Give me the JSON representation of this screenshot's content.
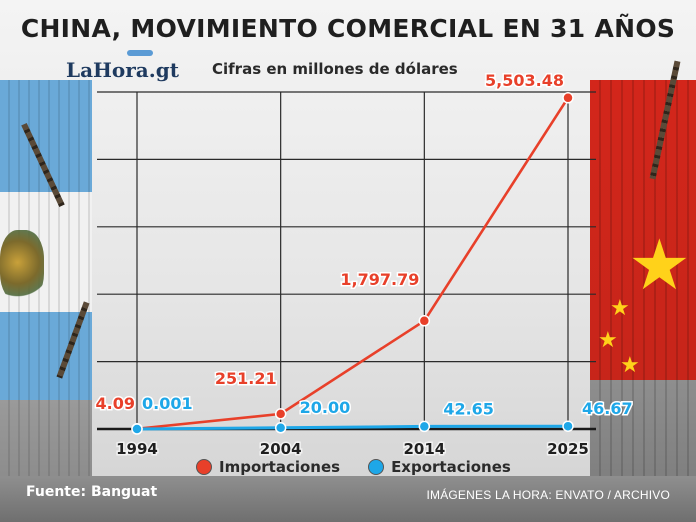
{
  "header": {
    "title": "CHINA, MOVIMIENTO COMERCIAL EN 31 AÑOS",
    "logo": "LaHora.gt",
    "subtitle": "Cifras en millones de dólares"
  },
  "chart_data": {
    "type": "line",
    "title": "CHINA, MOVIMIENTO COMERCIAL EN 31 AÑOS",
    "subtitle": "Cifras en millones de dólares",
    "x": [
      "1994",
      "2004",
      "2014",
      "2025"
    ],
    "series": [
      {
        "name": "Importaciones",
        "values": [
          4.09,
          251.21,
          1797.79,
          5503.48
        ],
        "labels": [
          "4.09",
          "251.21",
          "1,797.79",
          "5,503.48"
        ],
        "color": "#e8402a"
      },
      {
        "name": "Exportaciones",
        "values": [
          0.001,
          20.0,
          42.65,
          46.67
        ],
        "labels": [
          "0.001",
          "20.00",
          "42.65",
          "46.67"
        ],
        "color": "#1ea7e8"
      }
    ],
    "xlabel": "",
    "ylabel": "",
    "ylim": [
      0,
      5600
    ],
    "grid": true,
    "legend": "bottom"
  },
  "footer": {
    "source": "Fuente: Banguat",
    "credit": "IMÁGENES LA HORA: ENVATO / ARCHIVO"
  },
  "colors": {
    "importaciones": "#e8402a",
    "exportaciones": "#1ea7e8",
    "grid": "#2a2a2a"
  }
}
